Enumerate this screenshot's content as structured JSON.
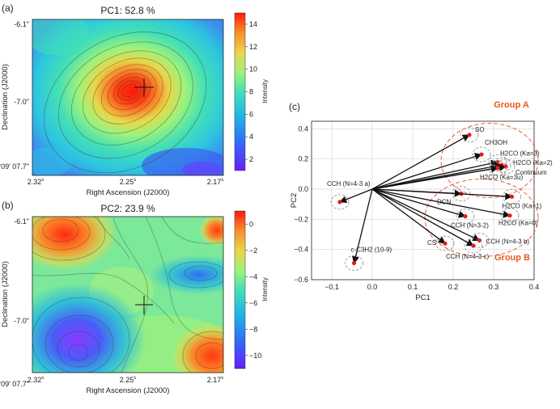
{
  "panels": {
    "a": {
      "label": "(a)",
      "title": "PC1: 52.8 %",
      "xlabel": "Right Ascension (J2000)",
      "ylabel": "Declination (J2000)",
      "xticks": [
        "2.32",
        "2.25",
        "2.17"
      ],
      "xtick_sup": "s",
      "yticks": [
        "-6.1\"",
        "-7.0\"",
        "-34°09′ 07.7\""
      ],
      "colorbar_label": "Intensity",
      "colorbar_ticks": [
        "14",
        "12",
        "10",
        "8",
        "6",
        "4",
        "2"
      ]
    },
    "b": {
      "label": "(b)",
      "title": "PC2: 23.9 %",
      "xlabel": "Right Ascension (J2000)",
      "ylabel": "Declination (J2000)",
      "xticks": [
        "2.32",
        "2.25",
        "2.17"
      ],
      "xtick_sup": "s",
      "yticks": [
        "-6.1\"",
        "-7.0\"",
        "-34°09′ 07.7\""
      ],
      "colorbar_label": "Intensity",
      "colorbar_ticks": [
        "0",
        "−2",
        "−4",
        "−6",
        "−8",
        "−10"
      ]
    },
    "c": {
      "label": "(c)",
      "group_a": "Group A",
      "group_b": "Group B"
    }
  },
  "chart_data": [
    {
      "type": "heatmap",
      "title": "PC1: 52.8 %",
      "xlabel": "Right Ascension (J2000)",
      "ylabel": "Declination (J2000)",
      "colorbar_range": [
        1,
        16
      ],
      "peak_value": 15,
      "colormap": "rainbow"
    },
    {
      "type": "heatmap",
      "title": "PC2: 23.9 %",
      "xlabel": "Right Ascension (J2000)",
      "ylabel": "Declination (J2000)",
      "colorbar_range": [
        -11.5,
        1.5
      ],
      "colormap": "rainbow"
    },
    {
      "type": "scatter",
      "xlabel": "PC1",
      "ylabel": "PC2",
      "xlim": [
        -0.15,
        0.4
      ],
      "ylim": [
        -0.6,
        0.45
      ],
      "xticks": [
        "−0.1",
        "0.0",
        "0.1",
        "0.2",
        "0.3",
        "0.4"
      ],
      "yticks": [
        "0.4",
        "0.2",
        "0.0",
        "−0.2",
        "−0.4",
        "−0.6"
      ],
      "grid": true,
      "points": [
        {
          "label": "SO",
          "x": 0.24,
          "y": 0.36
        },
        {
          "label": "CH3OH",
          "x": 0.27,
          "y": 0.23
        },
        {
          "label": "H2CO (Ka=3)",
          "x": 0.31,
          "y": 0.18
        },
        {
          "label": "H2CO (Ka=2)",
          "x": 0.32,
          "y": 0.16
        },
        {
          "label": "Continuum",
          "x": 0.33,
          "y": 0.15
        },
        {
          "label": "H2CO (Ka=3u)",
          "x": 0.31,
          "y": 0.14
        },
        {
          "label": "DCN",
          "x": 0.22,
          "y": -0.03
        },
        {
          "label": "H2CO (Ka=1)",
          "x": 0.345,
          "y": -0.05
        },
        {
          "label": "H2CO (Ka=0)",
          "x": 0.34,
          "y": -0.175
        },
        {
          "label": "CCH (N=3-2)",
          "x": 0.23,
          "y": -0.18
        },
        {
          "label": "CCH (N=4-3 b)",
          "x": 0.265,
          "y": -0.34
        },
        {
          "label": "CS",
          "x": 0.18,
          "y": -0.36
        },
        {
          "label": "CCH (N=4-3 c)",
          "x": 0.25,
          "y": -0.375
        },
        {
          "label": "CCH (N=4-3 a)",
          "x": -0.08,
          "y": -0.085
        },
        {
          "label": "c-C3H2 (10-9)",
          "x": -0.045,
          "y": -0.49
        }
      ]
    }
  ]
}
